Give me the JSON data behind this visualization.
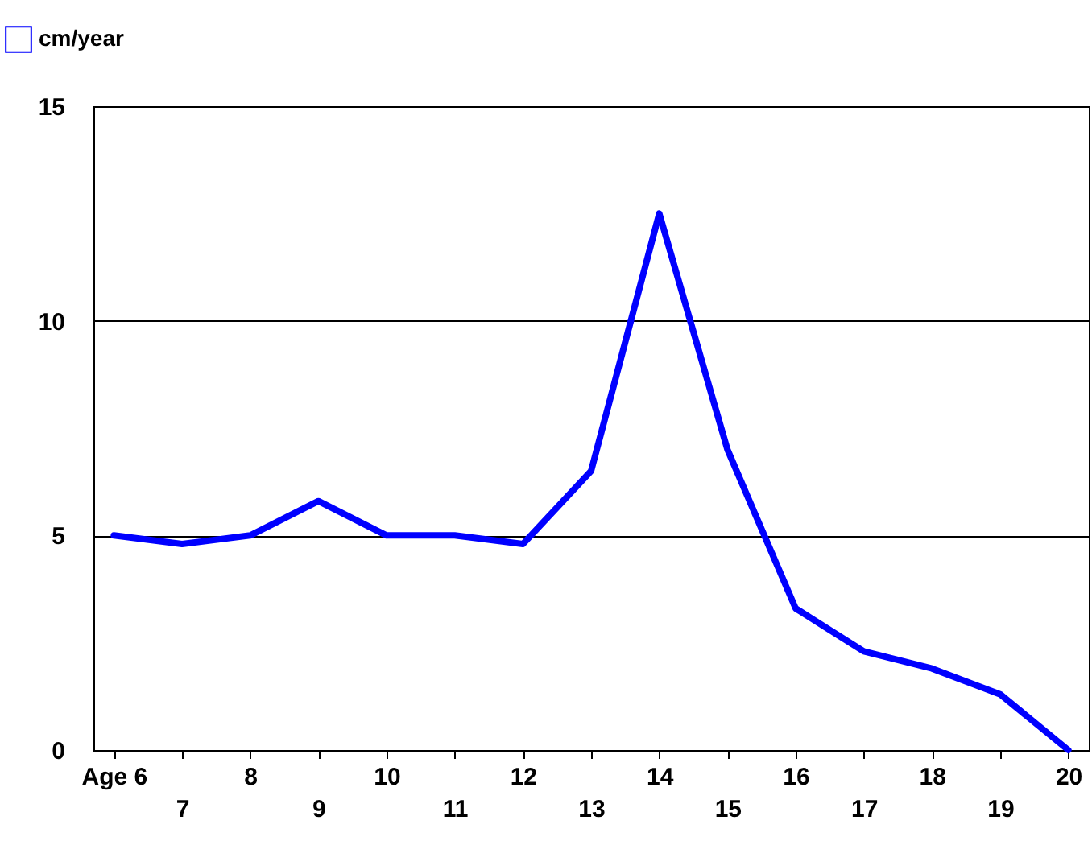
{
  "chart_data": {
    "type": "line",
    "categories": [
      "Age 6",
      "7",
      "8",
      "9",
      "10",
      "11",
      "12",
      "13",
      "14",
      "15",
      "16",
      "17",
      "18",
      "19",
      "20"
    ],
    "series": [
      {
        "name": "cm/year",
        "color": "#0000ff",
        "values": [
          5,
          4.8,
          5,
          5.8,
          5,
          5,
          4.8,
          6.5,
          12.5,
          7,
          3.3,
          2.3,
          1.9,
          1.3,
          0
        ]
      }
    ],
    "ylim": [
      0,
      15
    ],
    "yticks": [
      0,
      5,
      10,
      15
    ],
    "grid": "y",
    "legend": "top left",
    "marker": "none",
    "line_style": "solid"
  }
}
